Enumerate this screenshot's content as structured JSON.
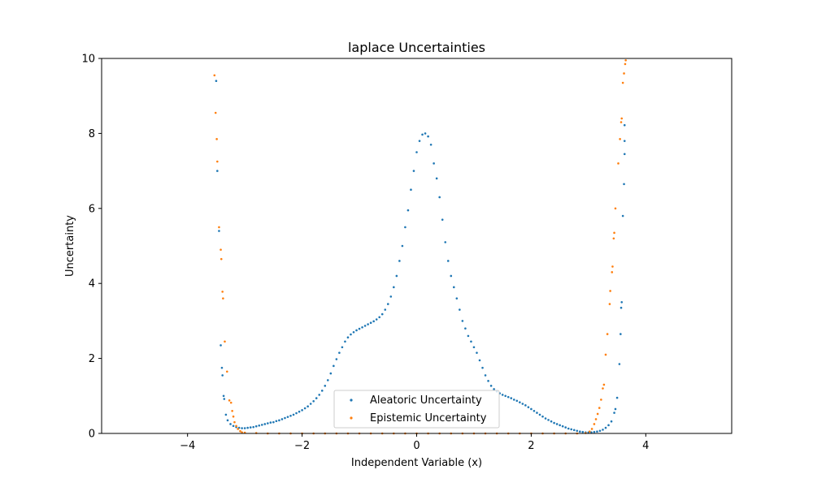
{
  "chart_data": {
    "type": "scatter",
    "title": "laplace Uncertainties",
    "xlabel": "Independent Variable (x)",
    "ylabel": "Uncertainty",
    "xlim": [
      -5.5,
      5.5
    ],
    "ylim": [
      0,
      10
    ],
    "xticks": [
      -4,
      -2,
      0,
      2,
      4
    ],
    "xtick_labels": [
      "−4",
      "−2",
      "0",
      "2",
      "4"
    ],
    "yticks": [
      0,
      2,
      4,
      6,
      8,
      10
    ],
    "ytick_labels": [
      "0",
      "2",
      "4",
      "6",
      "8",
      "10"
    ],
    "grid": false,
    "legend_position": "lower center",
    "series": [
      {
        "name": "Aleatoric Uncertainty",
        "color": "#1f77b4",
        "points": [
          [
            -3.5,
            9.4
          ],
          [
            -3.48,
            7.0
          ],
          [
            -3.45,
            5.4
          ],
          [
            -3.42,
            2.35
          ],
          [
            -3.4,
            1.75
          ],
          [
            -3.39,
            1.55
          ],
          [
            -3.37,
            1.0
          ],
          [
            -3.36,
            0.92
          ],
          [
            -3.33,
            0.5
          ],
          [
            -3.3,
            0.35
          ],
          [
            -3.25,
            0.25
          ],
          [
            -3.2,
            0.2
          ],
          [
            -3.15,
            0.17
          ],
          [
            -3.1,
            0.15
          ],
          [
            -3.05,
            0.14
          ],
          [
            -3.0,
            0.14
          ],
          [
            -2.95,
            0.15
          ],
          [
            -2.9,
            0.16
          ],
          [
            -2.85,
            0.17
          ],
          [
            -2.8,
            0.19
          ],
          [
            -2.75,
            0.21
          ],
          [
            -2.7,
            0.23
          ],
          [
            -2.65,
            0.25
          ],
          [
            -2.6,
            0.27
          ],
          [
            -2.55,
            0.29
          ],
          [
            -2.5,
            0.3
          ],
          [
            -2.45,
            0.33
          ],
          [
            -2.4,
            0.35
          ],
          [
            -2.35,
            0.38
          ],
          [
            -2.3,
            0.41
          ],
          [
            -2.25,
            0.44
          ],
          [
            -2.2,
            0.47
          ],
          [
            -2.15,
            0.5
          ],
          [
            -2.1,
            0.54
          ],
          [
            -2.05,
            0.58
          ],
          [
            -2.0,
            0.62
          ],
          [
            -1.95,
            0.67
          ],
          [
            -1.9,
            0.72
          ],
          [
            -1.85,
            0.79
          ],
          [
            -1.8,
            0.86
          ],
          [
            -1.75,
            0.94
          ],
          [
            -1.7,
            1.03
          ],
          [
            -1.65,
            1.14
          ],
          [
            -1.6,
            1.27
          ],
          [
            -1.55,
            1.42
          ],
          [
            -1.5,
            1.6
          ],
          [
            -1.45,
            1.8
          ],
          [
            -1.4,
            1.98
          ],
          [
            -1.35,
            2.15
          ],
          [
            -1.3,
            2.3
          ],
          [
            -1.25,
            2.45
          ],
          [
            -1.2,
            2.56
          ],
          [
            -1.15,
            2.64
          ],
          [
            -1.1,
            2.7
          ],
          [
            -1.05,
            2.75
          ],
          [
            -1.0,
            2.79
          ],
          [
            -0.95,
            2.83
          ],
          [
            -0.9,
            2.87
          ],
          [
            -0.85,
            2.91
          ],
          [
            -0.8,
            2.95
          ],
          [
            -0.75,
            2.99
          ],
          [
            -0.7,
            3.04
          ],
          [
            -0.65,
            3.1
          ],
          [
            -0.6,
            3.18
          ],
          [
            -0.55,
            3.3
          ],
          [
            -0.5,
            3.45
          ],
          [
            -0.45,
            3.65
          ],
          [
            -0.4,
            3.9
          ],
          [
            -0.35,
            4.2
          ],
          [
            -0.3,
            4.6
          ],
          [
            -0.25,
            5.0
          ],
          [
            -0.2,
            5.5
          ],
          [
            -0.15,
            5.95
          ],
          [
            -0.1,
            6.5
          ],
          [
            -0.05,
            7.0
          ],
          [
            0.0,
            7.5
          ],
          [
            0.05,
            7.8
          ],
          [
            0.1,
            7.97
          ],
          [
            0.15,
            8.0
          ],
          [
            0.2,
            7.92
          ],
          [
            0.25,
            7.7
          ],
          [
            0.3,
            7.2
          ],
          [
            0.35,
            6.8
          ],
          [
            0.4,
            6.3
          ],
          [
            0.45,
            5.7
          ],
          [
            0.5,
            5.1
          ],
          [
            0.55,
            4.6
          ],
          [
            0.6,
            4.2
          ],
          [
            0.65,
            3.9
          ],
          [
            0.7,
            3.6
          ],
          [
            0.75,
            3.3
          ],
          [
            0.8,
            3.0
          ],
          [
            0.85,
            2.8
          ],
          [
            0.9,
            2.6
          ],
          [
            0.95,
            2.45
          ],
          [
            1.0,
            2.3
          ],
          [
            1.05,
            2.15
          ],
          [
            1.1,
            1.95
          ],
          [
            1.15,
            1.75
          ],
          [
            1.2,
            1.55
          ],
          [
            1.25,
            1.4
          ],
          [
            1.3,
            1.27
          ],
          [
            1.35,
            1.18
          ],
          [
            1.4,
            1.12
          ],
          [
            1.45,
            1.07
          ],
          [
            1.5,
            1.03
          ],
          [
            1.55,
            1.0
          ],
          [
            1.6,
            0.97
          ],
          [
            1.65,
            0.94
          ],
          [
            1.7,
            0.9
          ],
          [
            1.75,
            0.87
          ],
          [
            1.8,
            0.83
          ],
          [
            1.85,
            0.79
          ],
          [
            1.9,
            0.75
          ],
          [
            1.95,
            0.7
          ],
          [
            2.0,
            0.65
          ],
          [
            2.05,
            0.6
          ],
          [
            2.1,
            0.55
          ],
          [
            2.15,
            0.5
          ],
          [
            2.2,
            0.45
          ],
          [
            2.25,
            0.4
          ],
          [
            2.3,
            0.36
          ],
          [
            2.35,
            0.32
          ],
          [
            2.4,
            0.28
          ],
          [
            2.45,
            0.25
          ],
          [
            2.5,
            0.22
          ],
          [
            2.55,
            0.19
          ],
          [
            2.6,
            0.16
          ],
          [
            2.65,
            0.13
          ],
          [
            2.7,
            0.11
          ],
          [
            2.75,
            0.09
          ],
          [
            2.8,
            0.07
          ],
          [
            2.85,
            0.05
          ],
          [
            2.9,
            0.04
          ],
          [
            2.95,
            0.03
          ],
          [
            3.0,
            0.03
          ],
          [
            3.05,
            0.03
          ],
          [
            3.1,
            0.04
          ],
          [
            3.15,
            0.05
          ],
          [
            3.2,
            0.07
          ],
          [
            3.25,
            0.1
          ],
          [
            3.3,
            0.15
          ],
          [
            3.35,
            0.22
          ],
          [
            3.4,
            0.32
          ],
          [
            3.45,
            0.55
          ],
          [
            3.47,
            0.65
          ],
          [
            3.5,
            0.95
          ],
          [
            3.54,
            1.85
          ],
          [
            3.56,
            2.65
          ],
          [
            3.57,
            3.35
          ],
          [
            3.58,
            3.5
          ],
          [
            3.6,
            5.8
          ],
          [
            3.62,
            6.65
          ],
          [
            3.63,
            7.45
          ],
          [
            3.63,
            7.8
          ],
          [
            3.63,
            8.22
          ]
        ]
      },
      {
        "name": "Epistemic Uncertainty",
        "color": "#ff7f0e",
        "points": [
          [
            -3.53,
            9.55
          ],
          [
            -3.51,
            8.55
          ],
          [
            -3.49,
            7.85
          ],
          [
            -3.48,
            7.25
          ],
          [
            -3.45,
            5.5
          ],
          [
            -3.42,
            4.9
          ],
          [
            -3.41,
            4.65
          ],
          [
            -3.39,
            3.78
          ],
          [
            -3.38,
            3.6
          ],
          [
            -3.35,
            2.45
          ],
          [
            -3.31,
            1.65
          ],
          [
            -3.27,
            0.88
          ],
          [
            -3.24,
            0.82
          ],
          [
            -3.22,
            0.6
          ],
          [
            -3.2,
            0.45
          ],
          [
            -3.18,
            0.3
          ],
          [
            -3.15,
            0.2
          ],
          [
            -3.12,
            0.12
          ],
          [
            -3.08,
            0.06
          ],
          [
            -3.05,
            0.03
          ],
          [
            -3.0,
            0.02
          ],
          [
            -2.8,
            0.01
          ],
          [
            -2.6,
            0.0
          ],
          [
            -2.4,
            0.0
          ],
          [
            -2.2,
            0.0
          ],
          [
            -2.0,
            0.0
          ],
          [
            -1.8,
            0.0
          ],
          [
            -1.6,
            0.0
          ],
          [
            -1.4,
            0.0
          ],
          [
            -1.2,
            0.0
          ],
          [
            -1.0,
            0.0
          ],
          [
            -0.8,
            0.0
          ],
          [
            -0.6,
            0.0
          ],
          [
            -0.4,
            0.0
          ],
          [
            -0.2,
            0.0
          ],
          [
            0.0,
            0.0
          ],
          [
            0.2,
            0.0
          ],
          [
            0.4,
            0.0
          ],
          [
            0.6,
            0.0
          ],
          [
            0.8,
            0.0
          ],
          [
            1.0,
            0.0
          ],
          [
            1.2,
            0.0
          ],
          [
            1.4,
            0.0
          ],
          [
            1.6,
            0.0
          ],
          [
            1.8,
            0.0
          ],
          [
            2.0,
            0.0
          ],
          [
            2.2,
            0.0
          ],
          [
            2.4,
            0.0
          ],
          [
            2.6,
            0.0
          ],
          [
            2.8,
            0.0
          ],
          [
            2.95,
            0.01
          ],
          [
            3.02,
            0.05
          ],
          [
            3.06,
            0.12
          ],
          [
            3.1,
            0.25
          ],
          [
            3.13,
            0.38
          ],
          [
            3.16,
            0.52
          ],
          [
            3.19,
            0.68
          ],
          [
            3.22,
            0.9
          ],
          [
            3.25,
            1.2
          ],
          [
            3.27,
            1.3
          ],
          [
            3.3,
            2.1
          ],
          [
            3.33,
            2.65
          ],
          [
            3.37,
            3.45
          ],
          [
            3.38,
            3.8
          ],
          [
            3.41,
            4.3
          ],
          [
            3.42,
            4.45
          ],
          [
            3.44,
            5.2
          ],
          [
            3.45,
            5.35
          ],
          [
            3.47,
            6.0
          ],
          [
            3.52,
            7.2
          ],
          [
            3.55,
            7.85
          ],
          [
            3.57,
            8.3
          ],
          [
            3.58,
            8.4
          ],
          [
            3.6,
            9.35
          ],
          [
            3.62,
            9.6
          ],
          [
            3.64,
            9.85
          ],
          [
            3.65,
            9.95
          ]
        ]
      }
    ]
  }
}
